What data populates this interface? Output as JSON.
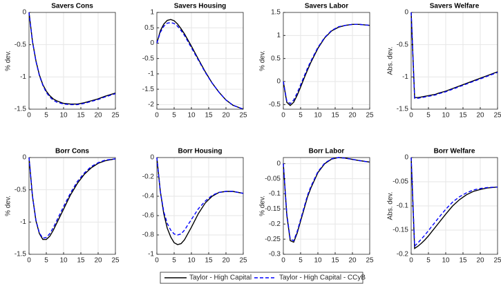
{
  "chart_data": [
    {
      "type": "line",
      "title": "Savers Cons",
      "ylabel": "% dev.",
      "grid": true,
      "xlim": [
        0,
        25
      ],
      "xticks": [
        0,
        5,
        10,
        15,
        20,
        25
      ],
      "ylim": [
        -1.5,
        0
      ],
      "yticks": [
        0,
        -0.5,
        -1,
        -1.5
      ],
      "x": [
        0,
        1,
        2,
        3,
        4,
        5,
        6,
        7,
        8,
        10,
        12,
        14,
        16,
        18,
        20,
        22,
        25
      ],
      "series": [
        {
          "name": "Taylor - High Capital",
          "color": "#000000",
          "dash": false,
          "values": [
            0,
            -0.45,
            -0.75,
            -0.97,
            -1.12,
            -1.22,
            -1.29,
            -1.34,
            -1.37,
            -1.41,
            -1.42,
            -1.42,
            -1.4,
            -1.37,
            -1.34,
            -1.3,
            -1.25
          ]
        },
        {
          "name": "Taylor - High Capital - CCyB",
          "color": "#0000ff",
          "dash": true,
          "values": [
            0,
            -0.45,
            -0.76,
            -0.98,
            -1.13,
            -1.24,
            -1.31,
            -1.36,
            -1.39,
            -1.42,
            -1.43,
            -1.43,
            -1.41,
            -1.38,
            -1.35,
            -1.31,
            -1.26
          ]
        }
      ]
    },
    {
      "type": "line",
      "title": "Savers Housing",
      "grid": true,
      "xlim": [
        0,
        25
      ],
      "xticks": [
        0,
        5,
        10,
        15,
        20,
        25
      ],
      "ylim": [
        -2.15,
        1
      ],
      "yticks": [
        1,
        0.5,
        0,
        -0.5,
        -1,
        -1.5,
        -2
      ],
      "x": [
        0,
        1,
        2,
        3,
        4,
        5,
        6,
        7,
        8,
        10,
        12,
        14,
        16,
        18,
        20,
        22,
        25
      ],
      "series": [
        {
          "name": "Taylor - High Capital",
          "color": "#000000",
          "dash": false,
          "values": [
            0,
            0.4,
            0.62,
            0.74,
            0.77,
            0.73,
            0.62,
            0.47,
            0.3,
            -0.1,
            -0.52,
            -0.93,
            -1.3,
            -1.6,
            -1.85,
            -2.02,
            -2.15
          ]
        },
        {
          "name": "Taylor - High Capital - CCyB",
          "color": "#0000ff",
          "dash": true,
          "values": [
            0,
            0.35,
            0.55,
            0.65,
            0.67,
            0.64,
            0.55,
            0.41,
            0.25,
            -0.15,
            -0.55,
            -0.95,
            -1.3,
            -1.6,
            -1.85,
            -2.02,
            -2.15
          ]
        }
      ]
    },
    {
      "type": "line",
      "title": "Savers Labor",
      "ylabel": "% dev.",
      "grid": true,
      "xlim": [
        0,
        25
      ],
      "xticks": [
        0,
        5,
        10,
        15,
        20,
        25
      ],
      "ylim": [
        -0.6,
        1.5
      ],
      "yticks": [
        1.5,
        1,
        0.5,
        0,
        -0.5
      ],
      "x": [
        0,
        1,
        2,
        3,
        4,
        5,
        6,
        7,
        8,
        10,
        12,
        14,
        16,
        18,
        20,
        22,
        25
      ],
      "series": [
        {
          "name": "Taylor - High Capital",
          "color": "#000000",
          "dash": false,
          "values": [
            0,
            -0.45,
            -0.52,
            -0.45,
            -0.3,
            -0.12,
            0.07,
            0.25,
            0.42,
            0.72,
            0.95,
            1.1,
            1.18,
            1.22,
            1.24,
            1.24,
            1.22
          ]
        },
        {
          "name": "Taylor - High Capital - CCyB",
          "color": "#0000ff",
          "dash": true,
          "values": [
            0,
            -0.42,
            -0.48,
            -0.4,
            -0.25,
            -0.07,
            0.11,
            0.29,
            0.45,
            0.74,
            0.96,
            1.11,
            1.19,
            1.22,
            1.24,
            1.24,
            1.22
          ]
        }
      ]
    },
    {
      "type": "line",
      "title": "Savers Welfare",
      "ylabel": "Abs. dev.",
      "grid": true,
      "xlim": [
        0,
        25
      ],
      "xticks": [
        0,
        5,
        10,
        15,
        20,
        25
      ],
      "ylim": [
        -1.5,
        0
      ],
      "yticks": [
        0,
        -0.5,
        -1,
        -1.5
      ],
      "x": [
        0,
        1,
        2,
        3,
        4,
        5,
        6,
        7,
        8,
        10,
        12,
        14,
        16,
        18,
        20,
        22,
        25
      ],
      "series": [
        {
          "name": "Taylor - High Capital",
          "color": "#000000",
          "dash": false,
          "values": [
            0,
            -1.32,
            -1.32,
            -1.31,
            -1.3,
            -1.29,
            -1.28,
            -1.27,
            -1.25,
            -1.22,
            -1.18,
            -1.14,
            -1.1,
            -1.06,
            -1.02,
            -0.98,
            -0.92
          ]
        },
        {
          "name": "Taylor - High Capital - CCyB",
          "color": "#0000ff",
          "dash": true,
          "values": [
            0,
            -1.33,
            -1.33,
            -1.32,
            -1.31,
            -1.3,
            -1.29,
            -1.28,
            -1.26,
            -1.23,
            -1.19,
            -1.15,
            -1.11,
            -1.07,
            -1.03,
            -0.99,
            -0.93
          ]
        }
      ]
    },
    {
      "type": "line",
      "title": "Borr Cons",
      "ylabel": "% dev.",
      "grid": true,
      "xlim": [
        0,
        25
      ],
      "xticks": [
        0,
        5,
        10,
        15,
        20,
        25
      ],
      "ylim": [
        -1.5,
        0
      ],
      "yticks": [
        0,
        -0.5,
        -1,
        -1.5
      ],
      "x": [
        0,
        1,
        2,
        3,
        4,
        5,
        6,
        7,
        8,
        10,
        12,
        14,
        16,
        18,
        20,
        22,
        25
      ],
      "series": [
        {
          "name": "Taylor - High Capital",
          "color": "#000000",
          "dash": false,
          "values": [
            0,
            -0.6,
            -0.98,
            -1.18,
            -1.27,
            -1.27,
            -1.22,
            -1.13,
            -1.02,
            -0.8,
            -0.58,
            -0.4,
            -0.26,
            -0.16,
            -0.09,
            -0.05,
            -0.02
          ]
        },
        {
          "name": "Taylor - High Capital - CCyB",
          "color": "#0000ff",
          "dash": true,
          "values": [
            0,
            -0.6,
            -0.97,
            -1.17,
            -1.25,
            -1.24,
            -1.18,
            -1.09,
            -0.98,
            -0.76,
            -0.55,
            -0.37,
            -0.24,
            -0.14,
            -0.08,
            -0.04,
            -0.02
          ]
        }
      ]
    },
    {
      "type": "line",
      "title": "Borr Housing",
      "grid": true,
      "xlim": [
        0,
        25
      ],
      "xticks": [
        0,
        5,
        10,
        15,
        20,
        25
      ],
      "ylim": [
        -1,
        0
      ],
      "yticks": [
        0,
        -0.2,
        -0.4,
        -0.6,
        -0.8,
        -1
      ],
      "x": [
        0,
        1,
        2,
        3,
        4,
        5,
        6,
        7,
        8,
        10,
        12,
        14,
        16,
        18,
        20,
        22,
        25
      ],
      "series": [
        {
          "name": "Taylor - High Capital",
          "color": "#000000",
          "dash": false,
          "values": [
            0,
            -0.35,
            -0.58,
            -0.73,
            -0.82,
            -0.88,
            -0.9,
            -0.89,
            -0.85,
            -0.72,
            -0.58,
            -0.47,
            -0.4,
            -0.36,
            -0.35,
            -0.35,
            -0.37
          ]
        },
        {
          "name": "Taylor - High Capital - CCyB",
          "color": "#0000ff",
          "dash": true,
          "values": [
            0,
            -0.35,
            -0.56,
            -0.68,
            -0.75,
            -0.79,
            -0.8,
            -0.79,
            -0.75,
            -0.64,
            -0.53,
            -0.45,
            -0.39,
            -0.36,
            -0.35,
            -0.35,
            -0.37
          ]
        }
      ]
    },
    {
      "type": "line",
      "title": "Borr Labor",
      "ylabel": "% dev.",
      "grid": true,
      "xlim": [
        0,
        25
      ],
      "xticks": [
        0,
        5,
        10,
        15,
        20,
        25
      ],
      "ylim": [
        -0.3,
        0.02
      ],
      "yticks": [
        0,
        -0.05,
        -0.1,
        -0.15,
        -0.2,
        -0.25,
        -0.3
      ],
      "x": [
        0,
        1,
        2,
        3,
        4,
        5,
        6,
        7,
        8,
        10,
        12,
        14,
        16,
        18,
        20,
        22,
        25
      ],
      "series": [
        {
          "name": "Taylor - High Capital",
          "color": "#000000",
          "dash": false,
          "values": [
            0,
            -0.17,
            -0.255,
            -0.26,
            -0.23,
            -0.19,
            -0.15,
            -0.11,
            -0.08,
            -0.03,
            0,
            0.015,
            0.02,
            0.018,
            0.014,
            0.01,
            0.005
          ]
        },
        {
          "name": "Taylor - High Capital - CCyB",
          "color": "#0000ff",
          "dash": true,
          "values": [
            0,
            -0.165,
            -0.25,
            -0.255,
            -0.225,
            -0.185,
            -0.145,
            -0.105,
            -0.075,
            -0.027,
            0.002,
            0.016,
            0.02,
            0.018,
            0.014,
            0.01,
            0.005
          ]
        }
      ]
    },
    {
      "type": "line",
      "title": "Borr Welfare",
      "ylabel": "Abs. dev.",
      "grid": true,
      "xlim": [
        0,
        25
      ],
      "xticks": [
        0,
        5,
        10,
        15,
        20,
        25
      ],
      "ylim": [
        -0.2,
        0
      ],
      "yticks": [
        0,
        -0.05,
        -0.1,
        -0.15,
        -0.2
      ],
      "x": [
        0,
        1,
        2,
        3,
        4,
        5,
        6,
        7,
        8,
        10,
        12,
        14,
        16,
        18,
        20,
        22,
        25
      ],
      "series": [
        {
          "name": "Taylor - High Capital",
          "color": "#000000",
          "dash": false,
          "values": [
            0,
            -0.188,
            -0.183,
            -0.177,
            -0.17,
            -0.162,
            -0.153,
            -0.144,
            -0.135,
            -0.117,
            -0.1,
            -0.087,
            -0.077,
            -0.07,
            -0.066,
            -0.063,
            -0.061
          ]
        },
        {
          "name": "Taylor - High Capital - CCyB",
          "color": "#0000ff",
          "dash": true,
          "values": [
            0,
            -0.183,
            -0.176,
            -0.168,
            -0.16,
            -0.151,
            -0.142,
            -0.133,
            -0.124,
            -0.107,
            -0.092,
            -0.081,
            -0.073,
            -0.067,
            -0.064,
            -0.062,
            -0.061
          ]
        }
      ]
    }
  ]
}
